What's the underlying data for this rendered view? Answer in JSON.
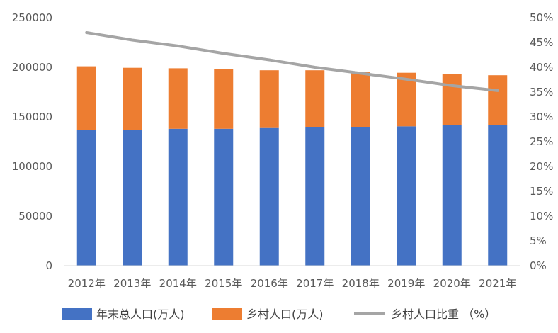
{
  "chart_data": {
    "type": "bar",
    "stacked": true,
    "categories": [
      "2012年",
      "2013年",
      "2014年",
      "2015年",
      "2016年",
      "2017年",
      "2018年",
      "2019年",
      "2020年",
      "2021年"
    ],
    "series": [
      {
        "name": "年末总人口(万人)",
        "kind": "bar",
        "axis": "left",
        "color": "#4472C4",
        "values": [
          136500,
          137000,
          138000,
          138000,
          139500,
          140000,
          140000,
          140500,
          141500,
          141500
        ]
      },
      {
        "name": "乡村人口(万人)",
        "kind": "bar",
        "axis": "left",
        "color": "#ED7D31",
        "values": [
          64500,
          62500,
          61000,
          60000,
          57500,
          57000,
          55500,
          54000,
          52000,
          50500
        ]
      },
      {
        "name": "乡村人口比重 （%）",
        "kind": "line",
        "axis": "right",
        "color": "#A5A5A5",
        "values": [
          47.0,
          45.5,
          44.3,
          42.8,
          41.5,
          40.0,
          38.8,
          37.6,
          36.3,
          35.3
        ]
      }
    ],
    "y_left": {
      "range": [
        0,
        250000
      ],
      "ticks": [
        "0",
        "50000",
        "100000",
        "150000",
        "200000",
        "250000"
      ]
    },
    "y_right": {
      "range": [
        0,
        50
      ],
      "ticks": [
        "0%",
        "5%",
        "10%",
        "15%",
        "20%",
        "25%",
        "30%",
        "35%",
        "40%",
        "45%",
        "50%"
      ]
    },
    "grid": false,
    "legend": "bottom"
  }
}
